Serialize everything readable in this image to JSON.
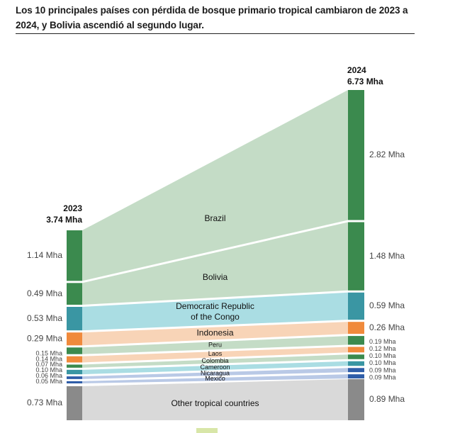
{
  "title": "Los 10 principales países con pérdida de bosque primario tropical cambiaron de 2023 a 2024, y Bolivia ascendió al segundo lugar.",
  "chart_data": {
    "type": "sankey-slope",
    "unit": "Mha",
    "left": {
      "year": "2023",
      "total_label": "3.74 Mha",
      "total": 3.74
    },
    "right": {
      "year": "2024",
      "total_label": "6.73 Mha",
      "total": 6.73
    },
    "countries": [
      {
        "name": "Brazil",
        "v2023": 1.14,
        "v2024": 2.82,
        "l2023": "1.14 Mha",
        "l2024": "2.82 Mha",
        "bar": "#3b8a4e",
        "band": "#c4dcc6"
      },
      {
        "name": "Bolivia",
        "v2023": 0.49,
        "v2024": 1.48,
        "l2023": "0.49 Mha",
        "l2024": "1.48 Mha",
        "bar": "#3b8a4e",
        "band": "#c4dcc6"
      },
      {
        "name": "Democratic Republic of the Congo",
        "name_lines": [
          "Democratic Republic",
          "of the Congo"
        ],
        "v2023": 0.53,
        "v2024": 0.59,
        "l2023": "0.53 Mha",
        "l2024": "0.59 Mha",
        "bar": "#3a96a3",
        "band": "#aadde3"
      },
      {
        "name": "Indonesia",
        "v2023": 0.29,
        "v2024": 0.26,
        "l2023": "0.29 Mha",
        "l2024": "0.26 Mha",
        "bar": "#f08a3c",
        "band": "#f8d4b7"
      },
      {
        "name": "Peru",
        "v2023": 0.15,
        "v2024": 0.19,
        "l2023": "0.15 Mha",
        "l2024": "0.19 Mha",
        "bar": "#3b8a4e",
        "band": "#c4dcc6"
      },
      {
        "name": "Laos",
        "v2023": 0.14,
        "v2024": 0.12,
        "l2023": "0.14 Mha",
        "l2024": "0.12 Mha",
        "bar": "#f08a3c",
        "band": "#f8d4b7"
      },
      {
        "name": "Colombia",
        "v2023": 0.07,
        "v2024": 0.1,
        "l2023": "0.07 Mha",
        "l2024": "0.10 Mha",
        "bar": "#3b8a4e",
        "band": "#c4dcc6"
      },
      {
        "name": "Cameroon",
        "v2023": 0.1,
        "v2024": 0.1,
        "l2023": "0.10 Mha",
        "l2024": "0.10 Mha",
        "bar": "#3a96a3",
        "band": "#aadde3"
      },
      {
        "name": "Nicaragua",
        "v2023": 0.06,
        "v2024": 0.09,
        "l2023": "0.06 Mha",
        "l2024": "0.09 Mha",
        "bar": "#2f5da8",
        "band": "#b9c9e6"
      },
      {
        "name": "Mexico",
        "v2023": 0.05,
        "v2024": 0.09,
        "l2023": "0.05 Mha",
        "l2024": "0.09 Mha",
        "bar": "#2f5da8",
        "band": "#b9c9e6"
      },
      {
        "name": "Other tropical countries",
        "v2023": 0.73,
        "v2024": 0.89,
        "l2023": "0.73 Mha",
        "l2024": "0.89 Mha",
        "bar": "#8a8a8a",
        "band": "#d9d9d9"
      }
    ]
  }
}
